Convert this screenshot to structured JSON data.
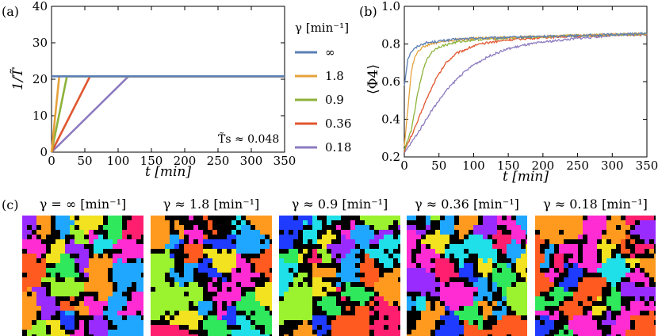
{
  "panels": {
    "a_label": "(a)",
    "b_label": "(b)",
    "c_label": "(c)"
  },
  "legend": {
    "title": "γ [min⁻¹]",
    "entries": [
      {
        "label": "∞",
        "color": "#5B7FB5"
      },
      {
        "label": "1.8",
        "color": "#E6A23C"
      },
      {
        "label": "0.9",
        "color": "#8DB23A"
      },
      {
        "label": "0.36",
        "color": "#E1562F"
      },
      {
        "label": "0.18",
        "color": "#8C7BC0"
      }
    ]
  },
  "chart_data": [
    {
      "id": "a",
      "type": "line",
      "title": "",
      "xlabel": "t [min]",
      "ylabel": "1/T̃",
      "xlim": [
        0,
        350
      ],
      "ylim": [
        0,
        40
      ],
      "xticks": [
        0,
        50,
        100,
        150,
        200,
        250,
        300,
        350
      ],
      "yticks": [
        0,
        10,
        20,
        30,
        40
      ],
      "annotation": "T̃s ≈ 0.048",
      "plateau": 20.8,
      "series": [
        {
          "name": "∞",
          "points": [
            [
              0,
              20.8
            ],
            [
              350,
              20.8
            ]
          ]
        },
        {
          "name": "1.8",
          "points": [
            [
              0,
              0
            ],
            [
              11.6,
              20.8
            ],
            [
              350,
              20.8
            ]
          ]
        },
        {
          "name": "0.9",
          "points": [
            [
              0,
              0
            ],
            [
              23.1,
              20.8
            ],
            [
              350,
              20.8
            ]
          ]
        },
        {
          "name": "0.36",
          "points": [
            [
              0,
              0
            ],
            [
              57.8,
              20.8
            ],
            [
              350,
              20.8
            ]
          ]
        },
        {
          "name": "0.18",
          "points": [
            [
              0,
              0
            ],
            [
              115.6,
              20.8
            ],
            [
              350,
              20.8
            ]
          ]
        }
      ]
    },
    {
      "id": "b",
      "type": "line",
      "title": "",
      "xlabel": "t [min]",
      "ylabel": "⟨Φ4⟩",
      "xlim": [
        0,
        350
      ],
      "ylim": [
        0.2,
        1.0
      ],
      "xticks": [
        0,
        50,
        100,
        150,
        200,
        250,
        300,
        350
      ],
      "yticks": [
        0.2,
        0.4,
        0.6,
        0.8,
        1.0
      ],
      "series": [
        {
          "name": "∞",
          "points": [
            [
              0,
              0.58
            ],
            [
              5,
              0.72
            ],
            [
              10,
              0.76
            ],
            [
              20,
              0.79
            ],
            [
              30,
              0.805
            ],
            [
              50,
              0.815
            ],
            [
              75,
              0.825
            ],
            [
              100,
              0.83
            ],
            [
              150,
              0.835
            ],
            [
              200,
              0.84
            ],
            [
              250,
              0.845
            ],
            [
              300,
              0.85
            ],
            [
              350,
              0.855
            ]
          ]
        },
        {
          "name": "1.8",
          "points": [
            [
              0,
              0.26
            ],
            [
              5,
              0.45
            ],
            [
              10,
              0.65
            ],
            [
              15,
              0.73
            ],
            [
              20,
              0.765
            ],
            [
              30,
              0.79
            ],
            [
              50,
              0.81
            ],
            [
              75,
              0.822
            ],
            [
              100,
              0.83
            ],
            [
              150,
              0.835
            ],
            [
              200,
              0.84
            ],
            [
              250,
              0.845
            ],
            [
              300,
              0.85
            ],
            [
              350,
              0.855
            ]
          ]
        },
        {
          "name": "0.9",
          "points": [
            [
              0,
              0.24
            ],
            [
              10,
              0.34
            ],
            [
              20,
              0.55
            ],
            [
              30,
              0.7
            ],
            [
              40,
              0.76
            ],
            [
              50,
              0.785
            ],
            [
              75,
              0.81
            ],
            [
              100,
              0.822
            ],
            [
              150,
              0.832
            ],
            [
              200,
              0.838
            ],
            [
              250,
              0.845
            ],
            [
              300,
              0.85
            ],
            [
              350,
              0.853
            ]
          ]
        },
        {
          "name": "0.36",
          "points": [
            [
              0,
              0.23
            ],
            [
              15,
              0.35
            ],
            [
              30,
              0.49
            ],
            [
              45,
              0.61
            ],
            [
              60,
              0.7
            ],
            [
              75,
              0.75
            ],
            [
              100,
              0.79
            ],
            [
              125,
              0.81
            ],
            [
              150,
              0.822
            ],
            [
              200,
              0.835
            ],
            [
              250,
              0.842
            ],
            [
              300,
              0.848
            ],
            [
              350,
              0.852
            ]
          ]
        },
        {
          "name": "0.18",
          "points": [
            [
              0,
              0.22
            ],
            [
              20,
              0.33
            ],
            [
              40,
              0.45
            ],
            [
              60,
              0.55
            ],
            [
              80,
              0.63
            ],
            [
              100,
              0.69
            ],
            [
              125,
              0.74
            ],
            [
              150,
              0.775
            ],
            [
              175,
              0.795
            ],
            [
              200,
              0.81
            ],
            [
              250,
              0.83
            ],
            [
              300,
              0.845
            ],
            [
              350,
              0.85
            ]
          ]
        }
      ]
    }
  ],
  "snapshots": [
    {
      "label": "γ = ∞ [min⁻¹]",
      "seed": 11
    },
    {
      "label": "γ ≈ 1.8 [min⁻¹]",
      "seed": 23
    },
    {
      "label": "γ ≈ 0.9 [min⁻¹]",
      "seed": 37
    },
    {
      "label": "γ ≈ 0.36 [min⁻¹]",
      "seed": 51
    },
    {
      "label": "γ ≈ 0.18 [min⁻¹]",
      "seed": 67
    }
  ],
  "snapshot_palette": [
    "#FF1F6E",
    "#FF2BD3",
    "#9A2BFF",
    "#1E3BFF",
    "#1FA7FF",
    "#1FE0E8",
    "#2FE85C",
    "#9BF22E",
    "#F2E21F",
    "#FF9A1F",
    "#FF5A1F"
  ]
}
